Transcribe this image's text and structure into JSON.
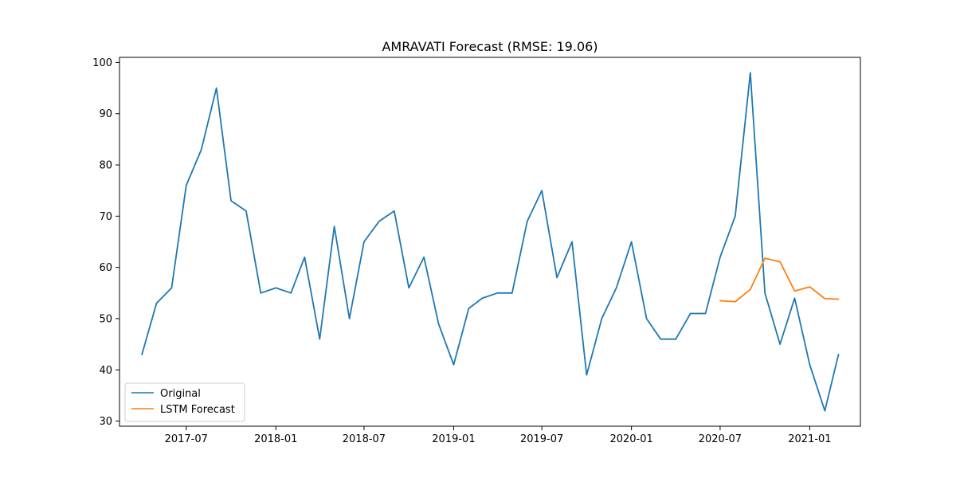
{
  "chart_data": {
    "type": "line",
    "title": "AMRAVATI Forecast (RMSE: 19.06)",
    "xlabel": "",
    "ylabel": "",
    "ylim": [
      29,
      101
    ],
    "xlim": [
      "2017-02-14",
      "2021-04-15"
    ],
    "x_ticks": [
      "2017-07",
      "2018-01",
      "2018-07",
      "2019-01",
      "2019-07",
      "2020-01",
      "2020-07",
      "2021-01"
    ],
    "y_ticks": [
      30,
      40,
      50,
      60,
      70,
      80,
      90,
      100
    ],
    "legend_position": "lower-left",
    "series": [
      {
        "name": "Original",
        "color": "#1f77b4",
        "x": [
          "2017-04-01",
          "2017-05-01",
          "2017-06-01",
          "2017-07-01",
          "2017-08-01",
          "2017-09-01",
          "2017-10-01",
          "2017-11-01",
          "2017-12-01",
          "2018-01-01",
          "2018-02-01",
          "2018-03-01",
          "2018-04-01",
          "2018-05-01",
          "2018-06-01",
          "2018-07-01",
          "2018-08-01",
          "2018-09-01",
          "2018-10-01",
          "2018-11-01",
          "2018-12-01",
          "2019-01-01",
          "2019-02-01",
          "2019-03-01",
          "2019-04-01",
          "2019-05-01",
          "2019-06-01",
          "2019-07-01",
          "2019-08-01",
          "2019-09-01",
          "2019-10-01",
          "2019-11-01",
          "2019-12-01",
          "2020-01-01",
          "2020-02-01",
          "2020-03-01",
          "2020-04-01",
          "2020-05-01",
          "2020-06-01",
          "2020-07-01",
          "2020-08-01",
          "2020-09-01",
          "2020-10-01",
          "2020-11-01",
          "2020-12-01",
          "2021-01-01",
          "2021-02-01",
          "2021-03-01"
        ],
        "values": [
          43,
          53,
          56,
          76,
          83,
          95,
          73,
          71,
          55,
          56,
          55,
          62,
          46,
          68,
          50,
          65,
          69,
          71,
          56,
          62,
          49,
          41,
          52,
          54,
          55,
          55,
          69,
          75,
          58,
          65,
          39,
          50,
          56,
          65,
          50,
          46,
          46,
          51,
          51,
          62,
          70,
          98,
          55,
          45,
          54,
          41,
          32,
          43
        ]
      },
      {
        "name": "LSTM Forecast",
        "color": "#ff7f0e",
        "x": [
          "2020-07-01",
          "2020-08-01",
          "2020-09-01",
          "2020-10-01",
          "2020-11-01",
          "2020-12-01",
          "2021-01-01",
          "2021-02-01",
          "2021-03-01"
        ],
        "values": [
          53.5,
          53.3,
          55.7,
          61.8,
          61.1,
          55.4,
          56.2,
          53.9,
          53.8
        ]
      }
    ]
  }
}
